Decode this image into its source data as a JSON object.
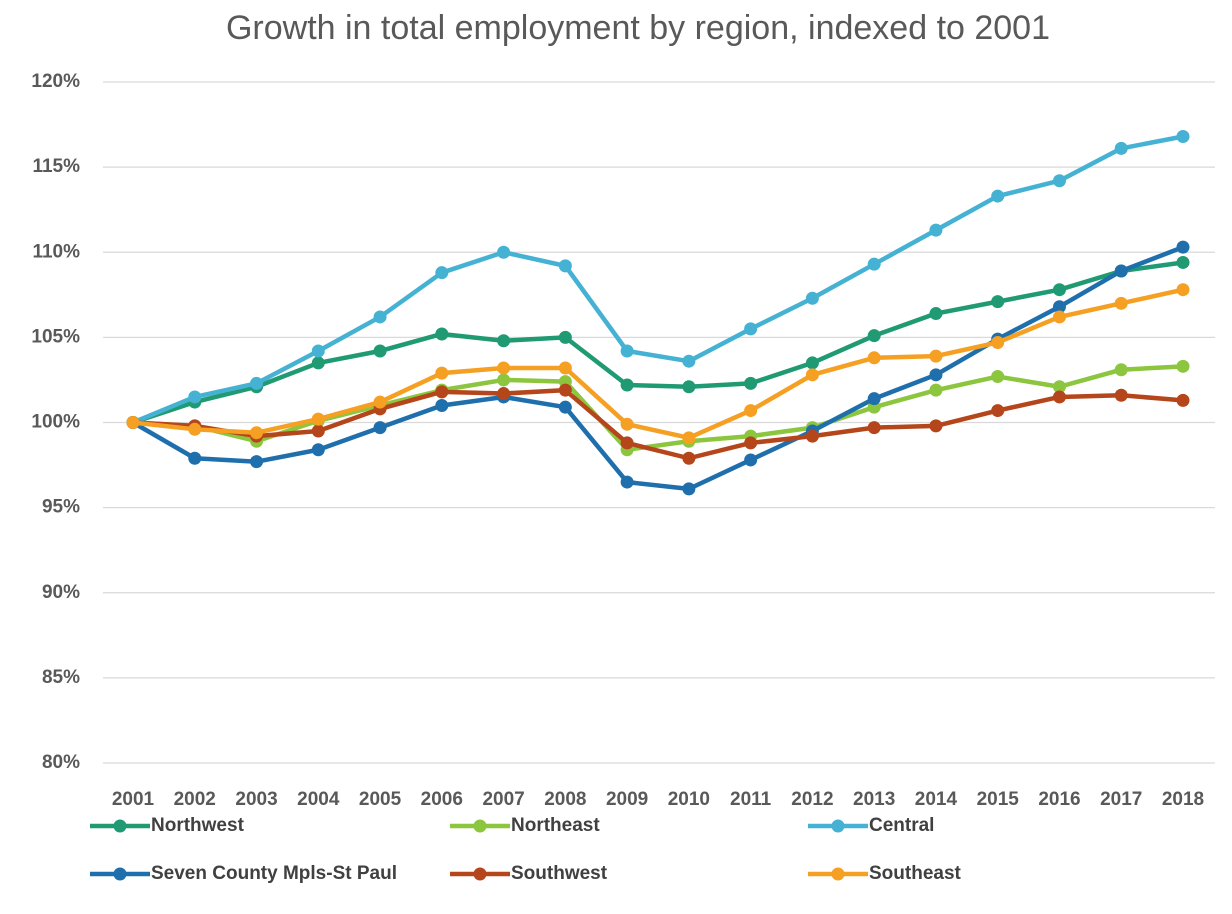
{
  "chart_data": {
    "type": "line",
    "title": "Growth in total employment by region, indexed to 2001",
    "categories": [
      "2001",
      "2002",
      "2003",
      "2004",
      "2005",
      "2006",
      "2007",
      "2008",
      "2009",
      "2010",
      "2011",
      "2012",
      "2013",
      "2014",
      "2015",
      "2016",
      "2017",
      "2018"
    ],
    "series": [
      {
        "name": "Northwest",
        "color": "#1f9a72",
        "values": [
          100,
          101.2,
          102.1,
          103.5,
          104.2,
          105.2,
          104.8,
          105.0,
          102.2,
          102.1,
          102.3,
          103.5,
          105.1,
          106.4,
          107.1,
          107.8,
          108.9,
          109.4
        ]
      },
      {
        "name": "Northeast",
        "color": "#8cc63f",
        "values": [
          100,
          99.8,
          98.9,
          100.1,
          101.0,
          101.9,
          102.5,
          102.4,
          98.4,
          98.9,
          99.2,
          99.7,
          100.9,
          101.9,
          102.7,
          102.1,
          103.1,
          103.3
        ]
      },
      {
        "name": "Central",
        "color": "#45b2d3",
        "values": [
          100,
          101.5,
          102.3,
          104.2,
          106.2,
          108.8,
          110.0,
          109.2,
          104.2,
          103.6,
          105.5,
          107.3,
          109.3,
          111.3,
          113.3,
          114.2,
          116.1,
          116.8
        ]
      },
      {
        "name": "Seven County Mpls-St Paul",
        "color": "#1f6fad",
        "values": [
          100,
          97.9,
          97.7,
          98.4,
          99.7,
          101.0,
          101.5,
          100.9,
          96.5,
          96.1,
          97.8,
          99.5,
          101.4,
          102.8,
          104.9,
          106.8,
          108.9,
          110.3
        ]
      },
      {
        "name": "Southwest",
        "color": "#b5461b",
        "values": [
          100,
          99.8,
          99.2,
          99.5,
          100.8,
          101.8,
          101.7,
          101.9,
          98.8,
          97.9,
          98.8,
          99.2,
          99.7,
          99.8,
          100.7,
          101.5,
          101.6,
          101.3
        ]
      },
      {
        "name": "Southeast",
        "color": "#f5a023",
        "values": [
          100,
          99.6,
          99.4,
          100.2,
          101.2,
          102.9,
          103.2,
          103.2,
          99.9,
          99.1,
          100.7,
          102.8,
          103.8,
          103.9,
          104.7,
          106.2,
          107.0,
          107.8
        ]
      }
    ],
    "ylim": [
      80,
      120
    ],
    "yticks": [
      {
        "value": 80,
        "label": "80%"
      },
      {
        "value": 85,
        "label": "85%"
      },
      {
        "value": 90,
        "label": "90%"
      },
      {
        "value": 95,
        "label": "95%"
      },
      {
        "value": 100,
        "label": "100%"
      },
      {
        "value": 105,
        "label": "105%"
      },
      {
        "value": 110,
        "label": "110%"
      },
      {
        "value": 115,
        "label": "115%"
      },
      {
        "value": 120,
        "label": "120%"
      }
    ],
    "grid": true,
    "legend": "bottom"
  }
}
